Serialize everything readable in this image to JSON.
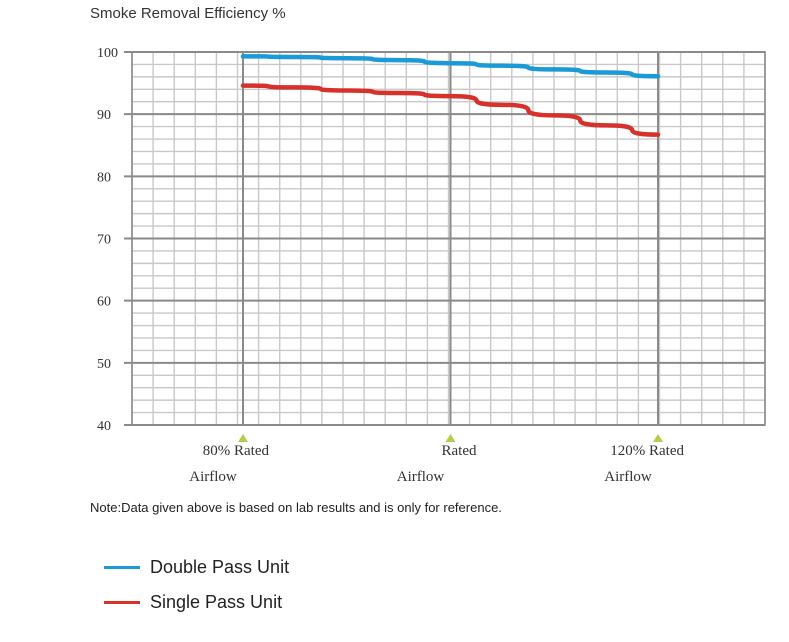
{
  "chart_data": {
    "type": "line",
    "title": "Smoke Removal Efficiency %",
    "xlabel": "",
    "ylabel": "",
    "ylim": [
      40,
      100
    ],
    "yticks": [
      40,
      50,
      60,
      70,
      80,
      90,
      100
    ],
    "grid": true,
    "x_categories": [
      {
        "top": "80%  Rated",
        "bottom": "Airflow"
      },
      {
        "top": "Rated",
        "bottom": "Airflow"
      },
      {
        "top": "120%  Rated",
        "bottom": "Airflow"
      }
    ],
    "xlim": [
      80,
      120
    ],
    "x_positions": [
      80,
      100,
      120
    ],
    "series": [
      {
        "name": "Double Pass Unit",
        "color": "#1a9ad6",
        "x": [
          80,
          85,
          90,
          95,
          100,
          105,
          110,
          115,
          120
        ],
        "y": [
          99.3,
          99.2,
          99.0,
          98.7,
          98.2,
          97.8,
          97.2,
          96.7,
          96.1
        ]
      },
      {
        "name": "Single Pass Unit",
        "color": "#d6322b",
        "x": [
          80,
          85,
          90,
          95,
          100,
          105,
          110,
          115,
          120
        ],
        "y": [
          94.6,
          94.3,
          93.8,
          93.4,
          92.9,
          91.5,
          89.8,
          88.2,
          86.7
        ]
      }
    ],
    "legend_position": "bottom-left"
  },
  "note": "Note:Data given above is based on lab results and is only for reference.",
  "colors": {
    "grid": "#c9c9c9",
    "major_grid": "#8a8a8a",
    "marker": "#b9c94a"
  }
}
